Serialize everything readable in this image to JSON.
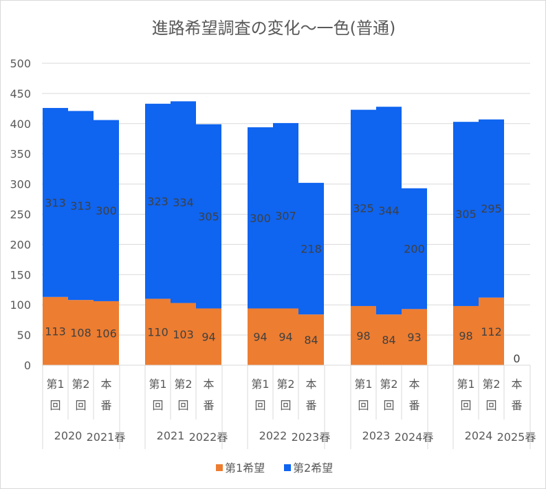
{
  "chart_data": {
    "type": "bar",
    "stacked": true,
    "title": "進路希望調査の変化〜一色(普通)",
    "ylim": [
      0,
      500
    ],
    "y_ticks": [
      0,
      50,
      100,
      150,
      200,
      250,
      300,
      350,
      400,
      450,
      500
    ],
    "grid": true,
    "legend_position": "bottom",
    "groups": [
      {
        "year": "2020",
        "target": "2021春",
        "bars": [
          {
            "label": [
              "第1",
              "回"
            ],
            "first": 113,
            "second": 313
          },
          {
            "label": [
              "第2",
              "回"
            ],
            "first": 108,
            "second": 313
          },
          {
            "label": [
              "本",
              "番"
            ],
            "first": 106,
            "second": 300
          }
        ]
      },
      {
        "year": "2021",
        "target": "2022春",
        "bars": [
          {
            "label": [
              "第1",
              "回"
            ],
            "first": 110,
            "second": 323
          },
          {
            "label": [
              "第2",
              "回"
            ],
            "first": 103,
            "second": 334
          },
          {
            "label": [
              "本",
              "番"
            ],
            "first": 94,
            "second": 305
          }
        ]
      },
      {
        "year": "2022",
        "target": "2023春",
        "bars": [
          {
            "label": [
              "第1",
              "回"
            ],
            "first": 94,
            "second": 300
          },
          {
            "label": [
              "第2",
              "回"
            ],
            "first": 94,
            "second": 307
          },
          {
            "label": [
              "本",
              "番"
            ],
            "first": 84,
            "second": 218
          }
        ]
      },
      {
        "year": "2023",
        "target": "2024春",
        "bars": [
          {
            "label": [
              "第1",
              "回"
            ],
            "first": 98,
            "second": 325
          },
          {
            "label": [
              "第2",
              "回"
            ],
            "first": 84,
            "second": 344
          },
          {
            "label": [
              "本",
              "番"
            ],
            "first": 93,
            "second": 200
          }
        ]
      },
      {
        "year": "2024",
        "target": "2025春",
        "bars": [
          {
            "label": [
              "第1",
              "回"
            ],
            "first": 98,
            "second": 305
          },
          {
            "label": [
              "第2",
              "回"
            ],
            "first": 112,
            "second": 295
          },
          {
            "label": [
              "本",
              "番"
            ],
            "first": 0,
            "second": null
          }
        ]
      }
    ],
    "series": [
      {
        "key": "first",
        "name": "第1希望",
        "color": "#ED7D31"
      },
      {
        "key": "second",
        "name": "第2希望",
        "color": "#0F64F0"
      }
    ]
  }
}
